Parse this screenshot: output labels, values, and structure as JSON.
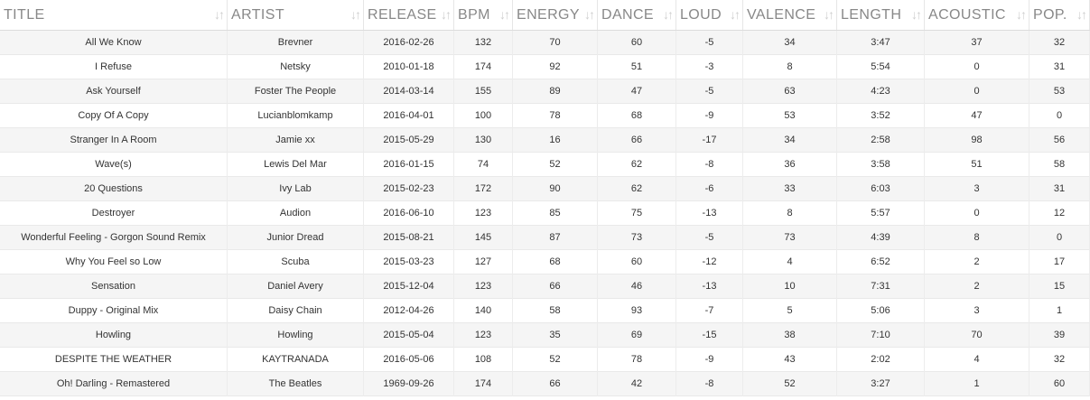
{
  "table": {
    "headers": [
      "TITLE",
      "ARTIST",
      "RELEASE",
      "BPM",
      "ENERGY",
      "DANCE",
      "LOUD",
      "VALENCE",
      "LENGTH",
      "ACOUSTIC",
      "POP."
    ],
    "sort_icon": "↓↑",
    "rows": [
      [
        "All We Know",
        "Brevner",
        "2016-02-26",
        "132",
        "70",
        "60",
        "-5",
        "34",
        "3:47",
        "37",
        "32"
      ],
      [
        "I Refuse",
        "Netsky",
        "2010-01-18",
        "174",
        "92",
        "51",
        "-3",
        "8",
        "5:54",
        "0",
        "31"
      ],
      [
        "Ask Yourself",
        "Foster The People",
        "2014-03-14",
        "155",
        "89",
        "47",
        "-5",
        "63",
        "4:23",
        "0",
        "53"
      ],
      [
        "Copy Of A Copy",
        "Lucianblomkamp",
        "2016-04-01",
        "100",
        "78",
        "68",
        "-9",
        "53",
        "3:52",
        "47",
        "0"
      ],
      [
        "Stranger In A Room",
        "Jamie xx",
        "2015-05-29",
        "130",
        "16",
        "66",
        "-17",
        "34",
        "2:58",
        "98",
        "56"
      ],
      [
        "Wave(s)",
        "Lewis Del Mar",
        "2016-01-15",
        "74",
        "52",
        "62",
        "-8",
        "36",
        "3:58",
        "51",
        "58"
      ],
      [
        "20 Questions",
        "Ivy Lab",
        "2015-02-23",
        "172",
        "90",
        "62",
        "-6",
        "33",
        "6:03",
        "3",
        "31"
      ],
      [
        "Destroyer",
        "Audion",
        "2016-06-10",
        "123",
        "85",
        "75",
        "-13",
        "8",
        "5:57",
        "0",
        "12"
      ],
      [
        "Wonderful Feeling - Gorgon Sound Remix",
        "Junior Dread",
        "2015-08-21",
        "145",
        "87",
        "73",
        "-5",
        "73",
        "4:39",
        "8",
        "0"
      ],
      [
        "Why You Feel so Low",
        "Scuba",
        "2015-03-23",
        "127",
        "68",
        "60",
        "-12",
        "4",
        "6:52",
        "2",
        "17"
      ],
      [
        "Sensation",
        "Daniel Avery",
        "2015-12-04",
        "123",
        "66",
        "46",
        "-13",
        "10",
        "7:31",
        "2",
        "15"
      ],
      [
        "Duppy - Original Mix",
        "Daisy Chain",
        "2012-04-26",
        "140",
        "58",
        "93",
        "-7",
        "5",
        "5:06",
        "3",
        "1"
      ],
      [
        "Howling",
        "Howling",
        "2015-05-04",
        "123",
        "35",
        "69",
        "-15",
        "38",
        "7:10",
        "70",
        "39"
      ],
      [
        "DESPITE THE WEATHER",
        "KAYTRANADA",
        "2016-05-06",
        "108",
        "52",
        "78",
        "-9",
        "43",
        "2:02",
        "4",
        "32"
      ],
      [
        "Oh! Darling - Remastered",
        "The Beatles",
        "1969-09-26",
        "174",
        "66",
        "42",
        "-8",
        "52",
        "3:27",
        "1",
        "60"
      ]
    ]
  },
  "colors": {
    "header_text": "#888888",
    "sort_icon": "#cfcfcf",
    "row_odd": "#f5f5f5",
    "row_even": "#ffffff",
    "cell_text": "#333333"
  }
}
